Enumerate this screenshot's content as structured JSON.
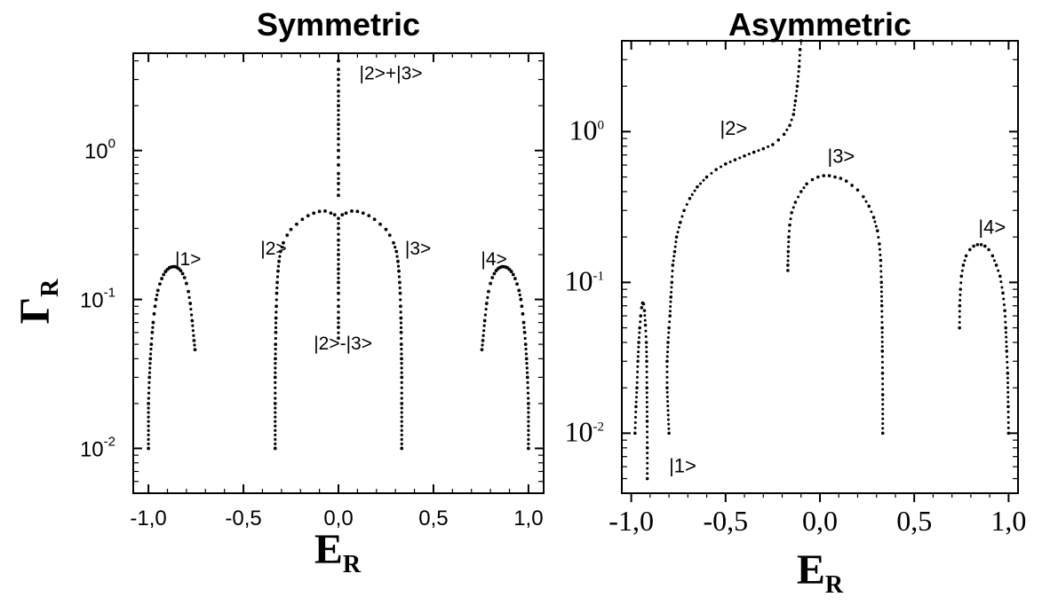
{
  "chart_data": [
    {
      "type": "scatter",
      "title": "Symmetric",
      "xlabel": {
        "main": "E",
        "sub": "R"
      },
      "ylabel": {
        "main": "Γ",
        "sub": "R"
      },
      "xlim": [
        -1.08,
        1.08
      ],
      "ylim": [
        0.005,
        4.5
      ],
      "yscale": "log",
      "xticks": [
        -1.0,
        -0.5,
        0.0,
        0.5,
        1.0
      ],
      "xticklabels": [
        "-1,0",
        "-0,5",
        "0,0",
        "0,5",
        "1,0"
      ],
      "yticks": [
        0.01,
        0.1,
        1
      ],
      "yticklabels": [
        {
          "base": "10",
          "exp": "-2"
        },
        {
          "base": "10",
          "exp": "-1"
        },
        {
          "base": "10",
          "exp": "0"
        }
      ],
      "annotations": [
        {
          "text": "|1>",
          "x": -0.86,
          "y": 0.17
        },
        {
          "text": "|2>",
          "x": -0.41,
          "y": 0.2
        },
        {
          "text": "|3>",
          "x": 0.35,
          "y": 0.2
        },
        {
          "text": "|4>",
          "x": 0.75,
          "y": 0.17
        },
        {
          "text": "|2>+|3>",
          "x": 0.11,
          "y": 3.0
        },
        {
          "text": "|2>-|3>",
          "x": -0.13,
          "y": 0.046
        }
      ],
      "series": [
        {
          "points": [
            [
              -1.0,
              0.01
            ],
            [
              -1.0,
              0.02
            ],
            [
              -0.995,
              0.03
            ],
            [
              -0.99,
              0.04
            ],
            [
              -0.985,
              0.05
            ],
            [
              -0.98,
              0.06
            ],
            [
              -0.975,
              0.07
            ],
            [
              -0.97,
              0.08
            ],
            [
              -0.965,
              0.09
            ],
            [
              -0.96,
              0.1
            ],
            [
              -0.95,
              0.115
            ],
            [
              -0.94,
              0.127
            ],
            [
              -0.93,
              0.138
            ],
            [
              -0.92,
              0.147
            ],
            [
              -0.91,
              0.154
            ],
            [
              -0.9,
              0.159
            ],
            [
              -0.89,
              0.163
            ],
            [
              -0.88,
              0.165
            ],
            [
              -0.87,
              0.166
            ],
            [
              -0.86,
              0.166
            ],
            [
              -0.85,
              0.164
            ],
            [
              -0.84,
              0.161
            ],
            [
              -0.83,
              0.156
            ],
            [
              -0.82,
              0.149
            ],
            [
              -0.81,
              0.14
            ],
            [
              -0.8,
              0.128
            ],
            [
              -0.79,
              0.113
            ],
            [
              -0.78,
              0.094
            ],
            [
              -0.77,
              0.072
            ],
            [
              -0.76,
              0.053
            ],
            [
              -0.755,
              0.046
            ]
          ]
        },
        {
          "points": [
            [
              1.0,
              0.01
            ],
            [
              1.0,
              0.02
            ],
            [
              0.995,
              0.03
            ],
            [
              0.99,
              0.04
            ],
            [
              0.985,
              0.05
            ],
            [
              0.98,
              0.06
            ],
            [
              0.975,
              0.07
            ],
            [
              0.97,
              0.08
            ],
            [
              0.965,
              0.09
            ],
            [
              0.96,
              0.1
            ],
            [
              0.95,
              0.115
            ],
            [
              0.94,
              0.127
            ],
            [
              0.93,
              0.138
            ],
            [
              0.92,
              0.147
            ],
            [
              0.91,
              0.154
            ],
            [
              0.9,
              0.159
            ],
            [
              0.89,
              0.163
            ],
            [
              0.88,
              0.165
            ],
            [
              0.87,
              0.166
            ],
            [
              0.86,
              0.166
            ],
            [
              0.85,
              0.164
            ],
            [
              0.84,
              0.161
            ],
            [
              0.83,
              0.156
            ],
            [
              0.82,
              0.149
            ],
            [
              0.81,
              0.14
            ],
            [
              0.8,
              0.128
            ],
            [
              0.79,
              0.113
            ],
            [
              0.78,
              0.094
            ],
            [
              0.77,
              0.072
            ],
            [
              0.76,
              0.053
            ],
            [
              0.755,
              0.046
            ]
          ]
        },
        {
          "points": [
            [
              -0.333,
              0.01
            ],
            [
              -0.333,
              0.02
            ],
            [
              -0.333,
              0.03
            ],
            [
              -0.332,
              0.04
            ],
            [
              -0.331,
              0.05
            ],
            [
              -0.33,
              0.06
            ],
            [
              -0.329,
              0.075
            ],
            [
              -0.327,
              0.09
            ],
            [
              -0.325,
              0.11
            ],
            [
              -0.322,
              0.13
            ],
            [
              -0.318,
              0.155
            ],
            [
              -0.313,
              0.18
            ],
            [
              -0.305,
              0.21
            ],
            [
              -0.29,
              0.24
            ],
            [
              -0.27,
              0.27
            ],
            [
              -0.25,
              0.295
            ],
            [
              -0.22,
              0.32
            ],
            [
              -0.19,
              0.345
            ],
            [
              -0.16,
              0.365
            ],
            [
              -0.13,
              0.38
            ],
            [
              -0.1,
              0.39
            ],
            [
              -0.07,
              0.392
            ],
            [
              -0.04,
              0.38
            ],
            [
              -0.02,
              0.37
            ]
          ]
        },
        {
          "points": [
            [
              0.333,
              0.01
            ],
            [
              0.333,
              0.02
            ],
            [
              0.333,
              0.03
            ],
            [
              0.332,
              0.04
            ],
            [
              0.331,
              0.05
            ],
            [
              0.33,
              0.06
            ],
            [
              0.329,
              0.075
            ],
            [
              0.327,
              0.09
            ],
            [
              0.325,
              0.11
            ],
            [
              0.322,
              0.13
            ],
            [
              0.318,
              0.155
            ],
            [
              0.313,
              0.18
            ],
            [
              0.305,
              0.21
            ],
            [
              0.29,
              0.24
            ],
            [
              0.27,
              0.27
            ],
            [
              0.25,
              0.295
            ],
            [
              0.22,
              0.32
            ],
            [
              0.19,
              0.345
            ],
            [
              0.16,
              0.365
            ],
            [
              0.13,
              0.38
            ],
            [
              0.1,
              0.39
            ],
            [
              0.07,
              0.392
            ],
            [
              0.04,
              0.38
            ],
            [
              0.02,
              0.37
            ]
          ]
        },
        {
          "points": [
            [
              0.0,
              0.5
            ],
            [
              0.0,
              0.6
            ],
            [
              0.0,
              0.7
            ],
            [
              0.0,
              0.8
            ],
            [
              0.0,
              0.9
            ],
            [
              0.0,
              1.0
            ],
            [
              0.0,
              1.2
            ],
            [
              0.0,
              1.5
            ],
            [
              0.0,
              2.0
            ],
            [
              0.0,
              2.5
            ],
            [
              0.0,
              3.0
            ],
            [
              0.0,
              3.5
            ],
            [
              0.0,
              4.0
            ]
          ]
        },
        {
          "points": [
            [
              0.0,
              0.055
            ],
            [
              0.0,
              0.065
            ],
            [
              0.0,
              0.075
            ],
            [
              0.0,
              0.09
            ],
            [
              0.0,
              0.11
            ],
            [
              0.0,
              0.13
            ],
            [
              0.0,
              0.16
            ],
            [
              0.0,
              0.2
            ],
            [
              0.0,
              0.25
            ],
            [
              0.0,
              0.3
            ],
            [
              0.0,
              0.35
            ]
          ]
        }
      ]
    },
    {
      "type": "scatter",
      "title": "Asymmetric",
      "xlabel": {
        "main": "E",
        "sub": "R"
      },
      "xlim": [
        -1.05,
        1.05
      ],
      "ylim": [
        0.004,
        4.0
      ],
      "yscale": "log",
      "xticks": [
        -1.0,
        -0.5,
        0.0,
        0.5,
        1.0
      ],
      "xticklabels": [
        "-1,0",
        "-0,5",
        "0,0",
        "0,5",
        "1,0"
      ],
      "yticks": [
        0.01,
        0.1,
        1
      ],
      "yticklabels": [
        {
          "base": "10",
          "exp": "-2"
        },
        {
          "base": "10",
          "exp": "-1"
        },
        {
          "base": "10",
          "exp": "0"
        }
      ],
      "annotations": [
        {
          "text": "|1>",
          "x": -0.8,
          "y": 0.0055
        },
        {
          "text": "|2>",
          "x": -0.53,
          "y": 0.95
        },
        {
          "text": "|3>",
          "x": 0.04,
          "y": 0.62
        },
        {
          "text": "|4>",
          "x": 0.84,
          "y": 0.21
        }
      ],
      "series": [
        {
          "points": [
            [
              -0.98,
              0.01
            ],
            [
              -0.975,
              0.015
            ],
            [
              -0.97,
              0.02
            ],
            [
              -0.965,
              0.03
            ],
            [
              -0.96,
              0.04
            ],
            [
              -0.955,
              0.05
            ],
            [
              -0.95,
              0.06
            ],
            [
              -0.945,
              0.068
            ],
            [
              -0.94,
              0.073
            ],
            [
              -0.935,
              0.072
            ],
            [
              -0.93,
              0.065
            ],
            [
              -0.925,
              0.052
            ],
            [
              -0.92,
              0.04
            ],
            [
              -0.918,
              0.03
            ],
            [
              -0.917,
              0.02
            ],
            [
              -0.916,
              0.012
            ],
            [
              -0.915,
              0.008
            ],
            [
              -0.915,
              0.005
            ]
          ]
        },
        {
          "points": [
            [
              -0.8,
              0.01
            ],
            [
              -0.81,
              0.02
            ],
            [
              -0.81,
              0.03
            ],
            [
              -0.805,
              0.04
            ],
            [
              -0.8,
              0.05
            ],
            [
              -0.795,
              0.06
            ],
            [
              -0.79,
              0.08
            ],
            [
              -0.785,
              0.1
            ],
            [
              -0.78,
              0.13
            ],
            [
              -0.77,
              0.16
            ],
            [
              -0.76,
              0.2
            ],
            [
              -0.74,
              0.25
            ],
            [
              -0.72,
              0.3
            ],
            [
              -0.69,
              0.36
            ],
            [
              -0.65,
              0.43
            ],
            [
              -0.6,
              0.5
            ],
            [
              -0.55,
              0.56
            ],
            [
              -0.5,
              0.61
            ],
            [
              -0.45,
              0.65
            ],
            [
              -0.4,
              0.69
            ],
            [
              -0.35,
              0.73
            ],
            [
              -0.3,
              0.77
            ],
            [
              -0.25,
              0.82
            ],
            [
              -0.22,
              0.88
            ],
            [
              -0.19,
              0.96
            ],
            [
              -0.16,
              1.1
            ],
            [
              -0.14,
              1.3
            ],
            [
              -0.13,
              1.6
            ],
            [
              -0.12,
              2.0
            ],
            [
              -0.11,
              2.7
            ],
            [
              -0.105,
              3.5
            ],
            [
              -0.1,
              4.0
            ]
          ]
        },
        {
          "points": [
            [
              -0.17,
              0.12
            ],
            [
              -0.17,
              0.13
            ],
            [
              -0.168,
              0.16
            ],
            [
              -0.165,
              0.2
            ],
            [
              -0.16,
              0.24
            ],
            [
              -0.15,
              0.29
            ],
            [
              -0.13,
              0.34
            ],
            [
              -0.1,
              0.4
            ],
            [
              -0.07,
              0.45
            ],
            [
              -0.04,
              0.48
            ],
            [
              -0.01,
              0.5
            ],
            [
              0.02,
              0.51
            ],
            [
              0.05,
              0.51
            ],
            [
              0.08,
              0.5
            ],
            [
              0.11,
              0.49
            ],
            [
              0.14,
              0.47
            ],
            [
              0.17,
              0.44
            ],
            [
              0.2,
              0.41
            ],
            [
              0.23,
              0.37
            ],
            [
              0.26,
              0.32
            ],
            [
              0.285,
              0.27
            ],
            [
              0.305,
              0.22
            ],
            [
              0.315,
              0.18
            ],
            [
              0.322,
              0.14
            ],
            [
              0.326,
              0.1
            ],
            [
              0.328,
              0.07
            ],
            [
              0.33,
              0.05
            ],
            [
              0.331,
              0.035
            ],
            [
              0.332,
              0.025
            ],
            [
              0.333,
              0.018
            ],
            [
              0.333,
              0.01
            ]
          ]
        },
        {
          "points": [
            [
              0.74,
              0.05
            ],
            [
              0.741,
              0.07
            ],
            [
              0.745,
              0.09
            ],
            [
              0.75,
              0.11
            ],
            [
              0.76,
              0.13
            ],
            [
              0.775,
              0.15
            ],
            [
              0.795,
              0.165
            ],
            [
              0.815,
              0.174
            ],
            [
              0.835,
              0.178
            ],
            [
              0.855,
              0.178
            ],
            [
              0.875,
              0.174
            ],
            [
              0.895,
              0.165
            ],
            [
              0.915,
              0.15
            ],
            [
              0.935,
              0.13
            ],
            [
              0.955,
              0.11
            ],
            [
              0.97,
              0.085
            ],
            [
              0.98,
              0.065
            ],
            [
              0.985,
              0.05
            ],
            [
              0.99,
              0.035
            ],
            [
              0.995,
              0.025
            ],
            [
              0.998,
              0.015
            ],
            [
              1.0,
              0.01
            ]
          ]
        }
      ]
    }
  ]
}
